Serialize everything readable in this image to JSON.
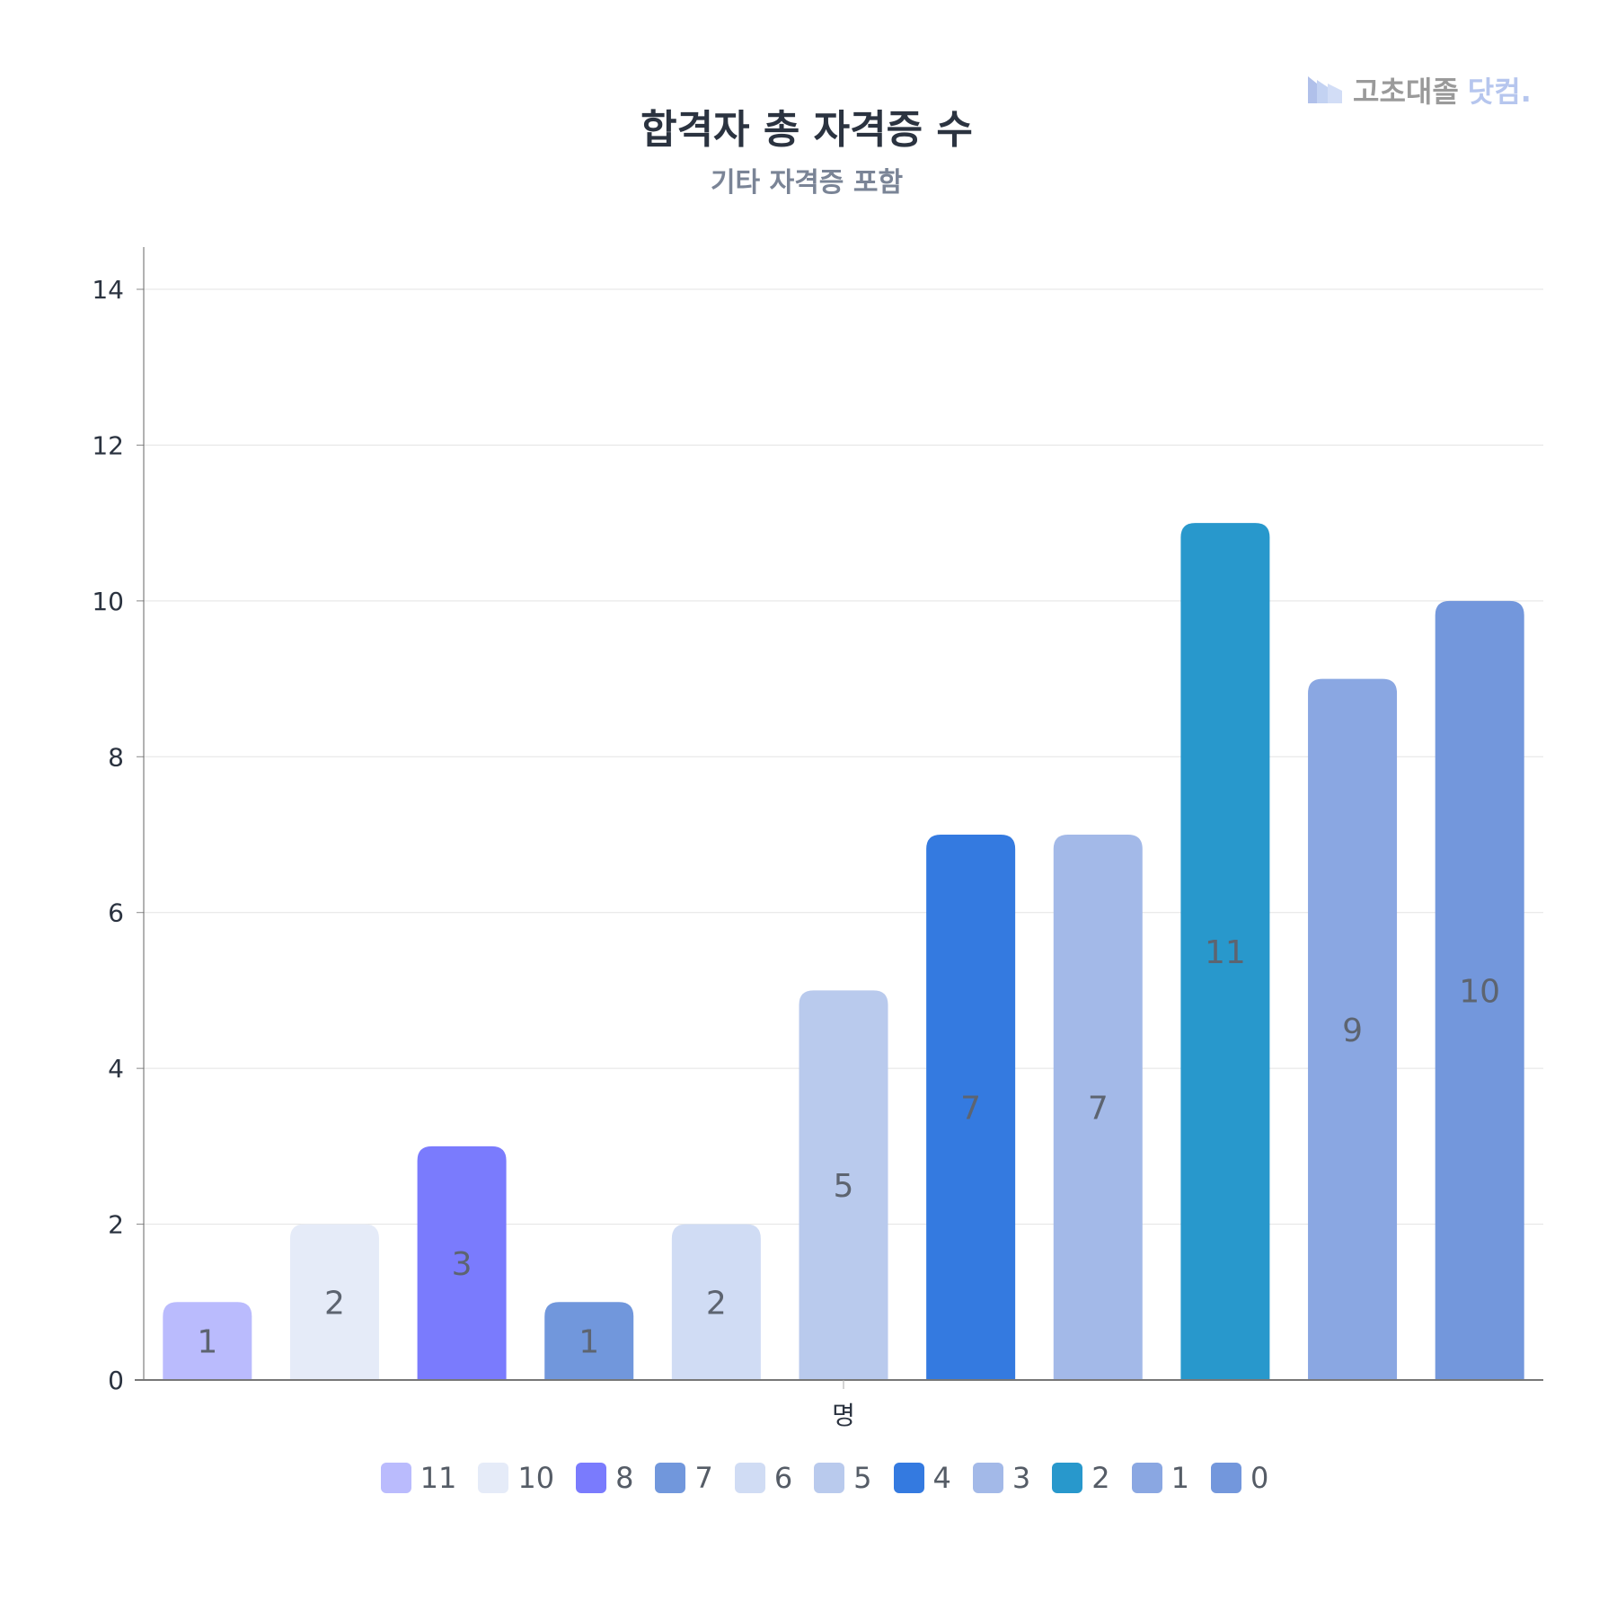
{
  "logo": {
    "text_gray": "고초대졸",
    "text_blue": "닷컴."
  },
  "chart_data": {
    "type": "bar",
    "title": "합격자 총 자격증 수",
    "subtitle": "기타 자격증 포함",
    "xlabel": "명",
    "ylabel": "",
    "ylim": [
      0,
      14
    ],
    "yticks": [
      0,
      2,
      4,
      6,
      8,
      10,
      12,
      14
    ],
    "grid": true,
    "legend_position": "bottom",
    "categories": [
      "11",
      "10",
      "8",
      "7",
      "6",
      "5",
      "4",
      "3",
      "2",
      "1",
      "0"
    ],
    "values": [
      1,
      2,
      3,
      1,
      2,
      5,
      7,
      7,
      11,
      9,
      10
    ],
    "colors": [
      "#babbfd",
      "#e5ebf8",
      "#7a7bfd",
      "#7197dc",
      "#d0dcf4",
      "#b9caed",
      "#347ae0",
      "#a3b9e8",
      "#2898cc",
      "#8aa7e2",
      "#7397dc"
    ]
  }
}
